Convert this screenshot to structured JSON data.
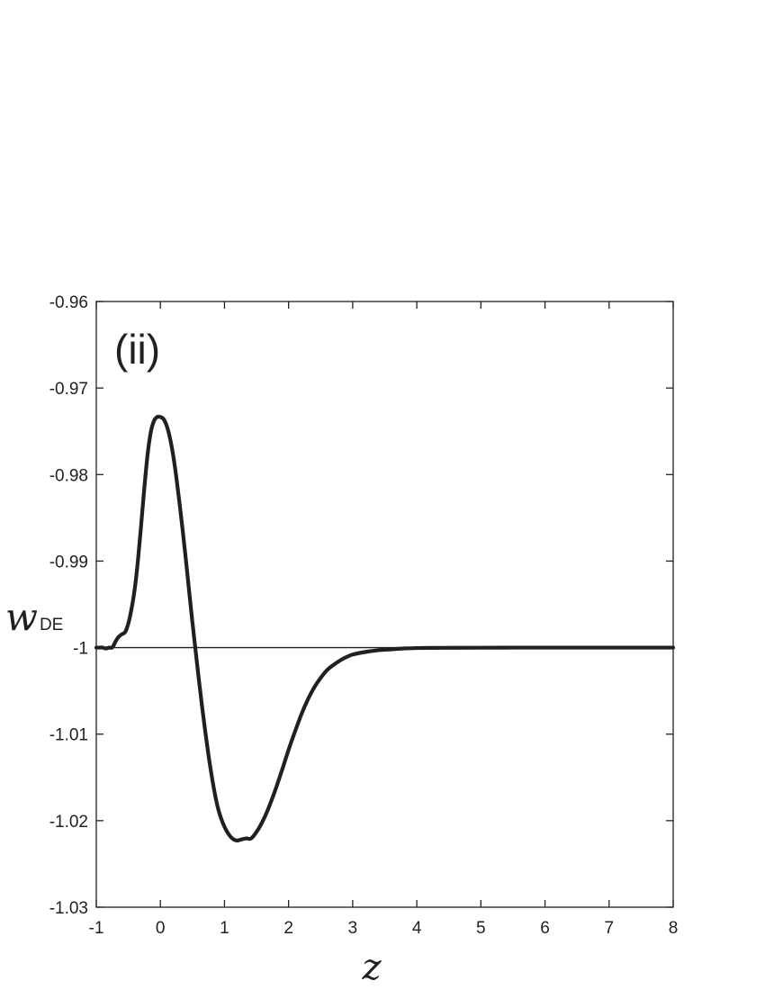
{
  "chart_data": {
    "type": "line",
    "panel_label": "(ii)",
    "xlabel": "z",
    "ylabel": {
      "main": "w",
      "subscript": "DE"
    },
    "xlim": [
      -1,
      8
    ],
    "ylim": [
      -1.03,
      -0.96
    ],
    "x_ticks": [
      -1,
      0,
      1,
      2,
      3,
      4,
      5,
      6,
      7,
      8
    ],
    "x_tick_labels": [
      "-1",
      "0",
      "1",
      "2",
      "3",
      "4",
      "5",
      "6",
      "7",
      "8"
    ],
    "y_ticks": [
      -1.03,
      -1.02,
      -1.01,
      -1,
      -0.99,
      -0.98,
      -0.97,
      -0.96
    ],
    "y_tick_labels": [
      "-1.03",
      "-1.02",
      "-1.01",
      "-1",
      "-0.99",
      "-0.98",
      "-0.97",
      "-0.96"
    ],
    "reference_line": {
      "y": -1
    },
    "grid": false,
    "series": [
      {
        "color": "#231f20",
        "x": [
          -1.0,
          -0.95,
          -0.9,
          -0.85,
          -0.8,
          -0.75,
          -0.7,
          -0.65,
          -0.6,
          -0.55,
          -0.5,
          -0.45,
          -0.4,
          -0.35,
          -0.3,
          -0.25,
          -0.2,
          -0.15,
          -0.1,
          -0.05,
          0.0,
          0.05,
          0.1,
          0.15,
          0.2,
          0.25,
          0.3,
          0.35,
          0.4,
          0.45,
          0.5,
          0.55,
          0.6,
          0.65,
          0.7,
          0.75,
          0.8,
          0.85,
          0.9,
          0.95,
          1.0,
          1.05,
          1.1,
          1.15,
          1.2,
          1.25,
          1.3,
          1.35,
          1.4,
          1.45,
          1.5,
          1.55,
          1.6,
          1.65,
          1.7,
          1.8,
          1.9,
          2.0,
          2.1,
          2.2,
          2.3,
          2.4,
          2.5,
          2.6,
          2.7,
          2.8,
          2.9,
          3.0,
          3.2,
          3.4,
          3.6,
          3.8,
          4.0,
          4.3,
          4.6,
          5.0,
          5.5,
          6.0,
          6.5,
          7.0,
          7.5,
          8.0
        ],
        "y": [
          -1.0,
          -1.0,
          -1.0,
          -1.0001,
          -1.0,
          -0.99998,
          -0.9993,
          -0.99875,
          -0.99845,
          -0.9982,
          -0.9972,
          -0.9955,
          -0.9932,
          -0.9899,
          -0.9858,
          -0.9815,
          -0.9777,
          -0.9751,
          -0.9738,
          -0.97335,
          -0.97335,
          -0.9736,
          -0.9744,
          -0.9758,
          -0.9778,
          -0.9804,
          -0.9834,
          -0.9866,
          -0.99,
          -0.9936,
          -0.9971,
          -1.0004,
          -1.0037,
          -1.0068,
          -1.0097,
          -1.0124,
          -1.0148,
          -1.0169,
          -1.0186,
          -1.0198,
          -1.0207,
          -1.0214,
          -1.0219,
          -1.0222,
          -1.0223,
          -1.0222,
          -1.0221,
          -1.02205,
          -1.0221,
          -1.0218,
          -1.0213,
          -1.0207,
          -1.02,
          -1.0192,
          -1.0183,
          -1.0163,
          -1.0141,
          -1.0118,
          -1.0097,
          -1.0077,
          -1.006,
          -1.0046,
          -1.0035,
          -1.0026,
          -1.002,
          -1.0015,
          -1.0011,
          -1.0008,
          -1.0005,
          -1.0003,
          -1.0002,
          -1.0001,
          -1.00005,
          -1.00003,
          -1.00002,
          -1.00001,
          -1.0,
          -1.0,
          -1.0,
          -1.0,
          -1.0,
          -1.0
        ]
      }
    ]
  }
}
